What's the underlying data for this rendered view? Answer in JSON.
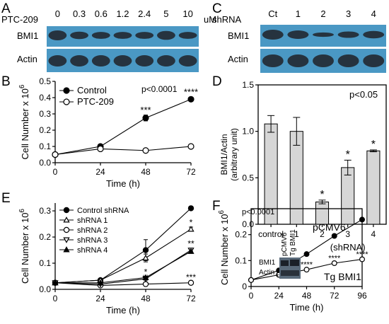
{
  "colors": {
    "blot_background": "#4a98c4",
    "blot_band": "#232a33",
    "bar_fill": "#d6d6d6",
    "axis": "#000000"
  },
  "panel_a": {
    "letter": "A",
    "treatment": "PTC-209",
    "doses": [
      "0",
      "0.3",
      "0.6",
      "1.2",
      "2.4",
      "5",
      "10"
    ],
    "unit": "uM",
    "rows": [
      "BMI1",
      "Actin"
    ]
  },
  "panel_c": {
    "letter": "C",
    "treatment": "shRNA",
    "lanes": [
      "Ct",
      "1",
      "2",
      "3",
      "4"
    ],
    "rows": [
      "BMI1",
      "Actin"
    ]
  },
  "panel_f_inset": {
    "lanes": [
      "pCMV6",
      "Tg BMI1"
    ],
    "rows": [
      "BMI1",
      "Actin"
    ]
  },
  "chart_data": [
    {
      "panel": "B",
      "type": "line",
      "x": [
        0,
        24,
        48,
        72
      ],
      "xlabel": "Time (h)",
      "ylabel": "Cell Number x 10",
      "ylabel_sup": "6",
      "xticks": [
        "0",
        "24",
        "48",
        "72"
      ],
      "yticks": [
        "0.0",
        "0.1",
        "0.2",
        "0.3",
        "0.4",
        "0.5"
      ],
      "xlim": [
        0,
        72
      ],
      "ylim": [
        0,
        0.5
      ],
      "annotation": "p<0.0001",
      "legend_position": "top-left",
      "series": [
        {
          "name": "Control",
          "values": [
            0.05,
            0.1,
            0.275,
            0.39
          ],
          "errors": [
            0.004,
            0.012,
            0.018,
            0.012
          ],
          "marker": "filled-circle"
        },
        {
          "name": "PTC-209",
          "values": [
            0.05,
            0.085,
            0.075,
            0.1
          ],
          "errors": [
            0.004,
            0.006,
            0.004,
            0.006
          ],
          "marker": "open-circle"
        }
      ],
      "sig_labels": [
        {
          "x": 48,
          "y": 0.305,
          "text": "***"
        },
        {
          "x": 72,
          "y": 0.415,
          "text": "****"
        }
      ]
    },
    {
      "panel": "D",
      "type": "bar",
      "categories": [
        "control",
        "1",
        "2",
        "3",
        "4"
      ],
      "values": [
        1.08,
        1.0,
        0.24,
        0.61,
        0.79
      ],
      "errors": [
        0.09,
        0.15,
        0.02,
        0.08,
        0.01
      ],
      "xlabel": "(shRNA)",
      "ylabel": "BMI1/Actin",
      "ylabel2": "(arbitrary unit)",
      "yticks": [
        "0.0",
        "0.5",
        "1.0",
        "1.5"
      ],
      "ylim": [
        0,
        1.5
      ],
      "annotation": "p<0.05",
      "stars": [
        "",
        "",
        "*",
        "*",
        "*"
      ]
    },
    {
      "panel": "E",
      "type": "line",
      "x": [
        0,
        24,
        48,
        72
      ],
      "xlabel": "Time (h)",
      "ylabel": "Cell Number x 10",
      "ylabel_sup": "6",
      "xticks": [
        "0",
        "24",
        "48",
        "72"
      ],
      "yticks": [
        "0.0",
        "0.1",
        "0.2",
        "0.3"
      ],
      "xlim": [
        0,
        72
      ],
      "ylim": [
        0,
        0.33
      ],
      "legend_position": "top-left",
      "series": [
        {
          "name": "Control shRNA",
          "values": [
            0.025,
            0.035,
            0.15,
            0.31
          ],
          "errors": [
            0.003,
            0.004,
            0.04,
            0.006
          ],
          "marker": "filled-circle"
        },
        {
          "name": "shRNA 1",
          "values": [
            0.025,
            0.035,
            0.12,
            0.23
          ],
          "errors": [
            0.003,
            0.004,
            0.015,
            0.008
          ],
          "marker": "open-triangle-up"
        },
        {
          "name": "shRNA 2",
          "values": [
            0.025,
            0.015,
            0.02,
            0.025
          ],
          "errors": [
            0.003,
            0.003,
            0.003,
            0.003
          ],
          "marker": "open-circle"
        },
        {
          "name": "shRNA 3",
          "values": [
            0.025,
            0.02,
            0.04,
            0.15
          ],
          "errors": [
            0.003,
            0.003,
            0.005,
            0.006
          ],
          "marker": "open-triangle-down"
        },
        {
          "name": "shRNA 4",
          "values": [
            0.025,
            0.025,
            0.045,
            0.145
          ],
          "errors": [
            0.003,
            0.003,
            0.005,
            0.006
          ],
          "marker": "filled-triangle-up"
        }
      ],
      "sig_labels": [
        {
          "x": 48,
          "y": 0.055,
          "text": "*"
        },
        {
          "x": 48,
          "y": 0.032,
          "text": "**"
        },
        {
          "x": 72,
          "y": 0.245,
          "text": "*"
        },
        {
          "x": 72,
          "y": 0.163,
          "text": "**"
        },
        {
          "x": 72,
          "y": 0.035,
          "text": "***"
        }
      ]
    },
    {
      "panel": "F",
      "type": "line",
      "x": [
        0,
        24,
        48,
        72,
        96
      ],
      "xlabel": "Time (h)",
      "ylabel": "Cell Number x 10",
      "ylabel_sup": "6",
      "xticks": [
        "0",
        "24",
        "48",
        "72",
        "96"
      ],
      "yticks": [
        "0",
        "0.1",
        "0.2"
      ],
      "xlim": [
        0,
        96
      ],
      "ylim": [
        0,
        0.3
      ],
      "annotation": "p<0.0001",
      "series": [
        {
          "name": "pCMV6",
          "values": [
            0.025,
            0.062,
            0.125,
            0.195,
            0.258
          ],
          "marker": "filled-circle"
        },
        {
          "name": "Tg BMI1",
          "values": [
            0.025,
            0.045,
            0.065,
            0.09,
            0.105
          ],
          "marker": "open-circle"
        }
      ],
      "sig_labels": [
        {
          "x": 24,
          "y": 0.028,
          "text": "**"
        },
        {
          "x": 48,
          "y": 0.075,
          "text": "****"
        },
        {
          "x": 72,
          "y": 0.1,
          "text": "****"
        },
        {
          "x": 96,
          "y": 0.115,
          "text": "****"
        }
      ]
    }
  ]
}
